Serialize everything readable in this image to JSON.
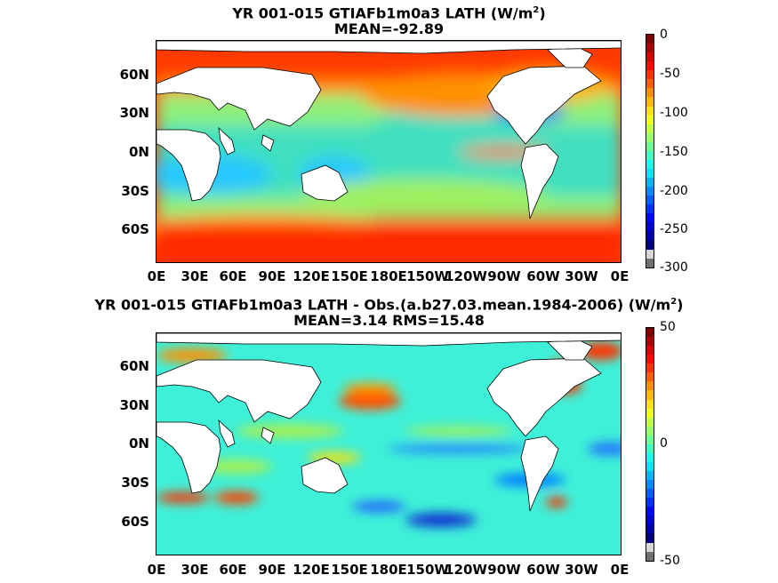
{
  "panels": [
    {
      "title_prefix": "YR 001-015 GTIAFb1m0a3  LATH (W/m",
      "title_sup": "2",
      "title_suffix": ")",
      "subtitle": "MEAN=-92.89",
      "colorbar_ticks": [
        "0",
        "-50",
        "-100",
        "-150",
        "-200",
        "-250",
        "-300"
      ]
    },
    {
      "title_prefix": "YR 001-015 GTIAFb1m0a3 LATH - Obs.(a.b27.03.mean.1984-2006) (W/m",
      "title_sup": "2",
      "title_suffix": ")",
      "subtitle": "MEAN=3.14 RMS=15.48",
      "colorbar_ticks": [
        "50",
        "0",
        "-50"
      ]
    }
  ],
  "lat_ticks": [
    "60N",
    "30N",
    "0N",
    "30S",
    "60S"
  ],
  "lon_ticks": [
    "0E",
    "30E",
    "60E",
    "90E",
    "120E",
    "150E",
    "180E",
    "150W",
    "120W",
    "90W",
    "60W",
    "30W",
    "0E"
  ],
  "chart_data": [
    {
      "type": "heatmap",
      "title": "YR 001-015 GTIAFb1m0a3  LATH (W/m2)",
      "subtitle": "MEAN=-92.89",
      "variable": "LATH",
      "units": "W/m2",
      "mean": -92.89,
      "colorbar_range": [
        -300,
        0
      ],
      "colorbar_ticks": [
        0,
        -50,
        -100,
        -150,
        -200,
        -250,
        -300
      ],
      "colormap": "jet",
      "x_ticks": [
        "0E",
        "30E",
        "60E",
        "90E",
        "120E",
        "150E",
        "180E",
        "150W",
        "120W",
        "90W",
        "60W",
        "30W",
        "0E"
      ],
      "y_ticks": [
        "60N",
        "30N",
        "0N",
        "30S",
        "60S"
      ]
    },
    {
      "type": "heatmap",
      "title": "YR 001-015 GTIAFb1m0a3 LATH - Obs.(a.b27.03.mean.1984-2006) (W/m2)",
      "subtitle": "MEAN=3.14 RMS=15.48",
      "variable": "LATH difference",
      "units": "W/m2",
      "mean": 3.14,
      "rms": 15.48,
      "colorbar_range": [
        -50,
        50
      ],
      "colorbar_ticks": [
        50,
        0,
        -50
      ],
      "colormap": "jet",
      "x_ticks": [
        "0E",
        "30E",
        "60E",
        "90E",
        "120E",
        "150E",
        "180E",
        "150W",
        "120W",
        "90W",
        "60W",
        "30W",
        "0E"
      ],
      "y_ticks": [
        "60N",
        "30N",
        "0N",
        "30S",
        "60S"
      ]
    }
  ]
}
